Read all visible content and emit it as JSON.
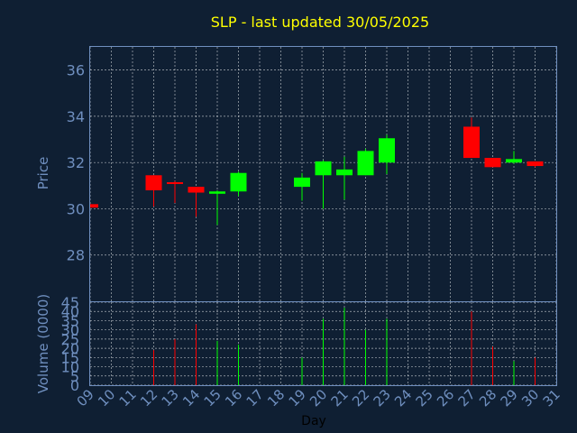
{
  "chart_data": {
    "type": "candlestick",
    "title": "SLP - last updated 30/05/2025",
    "xlabel": "Day",
    "price_panel": {
      "ylabel": "Price",
      "ylim": [
        26.0,
        37.0
      ],
      "yticks": [
        28,
        30,
        32,
        34,
        36
      ]
    },
    "volume_panel": {
      "ylabel": "Volume (0000)",
      "ylim": [
        0,
        45
      ],
      "yticks": [
        0,
        5,
        10,
        15,
        20,
        25,
        30,
        35,
        40,
        45
      ]
    },
    "x_ticks": [
      "09",
      "10",
      "11",
      "12",
      "13",
      "14",
      "15",
      "16",
      "17",
      "18",
      "19",
      "20",
      "21",
      "22",
      "23",
      "24",
      "25",
      "26",
      "27",
      "28",
      "29",
      "30",
      "31"
    ],
    "grid": true,
    "colors": {
      "background": "#0f1f33",
      "up": "#00ff00",
      "down": "#ff0000",
      "title": "#ffff00",
      "axis_text": "#6f8fbf",
      "frame": "#6f8fbf",
      "grid": "#ffffff"
    },
    "candles": [
      {
        "day": "09",
        "open": 30.2,
        "high": 30.2,
        "low": 30.05,
        "close": 30.05,
        "volume": 0
      },
      {
        "day": "12",
        "open": 31.45,
        "high": 31.45,
        "low": 30.1,
        "close": 30.8,
        "volume": 19
      },
      {
        "day": "13",
        "open": 31.15,
        "high": 31.2,
        "low": 30.25,
        "close": 31.1,
        "volume": 25
      },
      {
        "day": "14",
        "open": 30.95,
        "high": 30.95,
        "low": 29.65,
        "close": 30.7,
        "volume": 33
      },
      {
        "day": "15",
        "open": 30.65,
        "high": 30.8,
        "low": 29.3,
        "close": 30.75,
        "volume": 24
      },
      {
        "day": "16",
        "open": 30.75,
        "high": 31.6,
        "low": 30.55,
        "close": 31.55,
        "volume": 22
      },
      {
        "day": "19",
        "open": 30.95,
        "high": 31.55,
        "low": 30.35,
        "close": 31.35,
        "volume": 15
      },
      {
        "day": "20",
        "open": 31.45,
        "high": 32.1,
        "low": 30.0,
        "close": 32.05,
        "volume": 36
      },
      {
        "day": "21",
        "open": 31.45,
        "high": 32.25,
        "low": 30.4,
        "close": 31.7,
        "volume": 42
      },
      {
        "day": "22",
        "open": 31.45,
        "high": 32.6,
        "low": 31.45,
        "close": 32.5,
        "volume": 30
      },
      {
        "day": "23",
        "open": 32.0,
        "high": 33.2,
        "low": 31.5,
        "close": 33.05,
        "volume": 36
      },
      {
        "day": "27",
        "open": 33.55,
        "high": 33.95,
        "low": 32.2,
        "close": 32.2,
        "volume": 40
      },
      {
        "day": "28",
        "open": 32.2,
        "high": 32.2,
        "low": 31.8,
        "close": 31.8,
        "volume": 21
      },
      {
        "day": "29",
        "open": 32.0,
        "high": 32.5,
        "low": 31.95,
        "close": 32.15,
        "volume": 13
      },
      {
        "day": "30",
        "open": 32.05,
        "high": 32.05,
        "low": 31.8,
        "close": 31.85,
        "volume": 15
      }
    ]
  }
}
